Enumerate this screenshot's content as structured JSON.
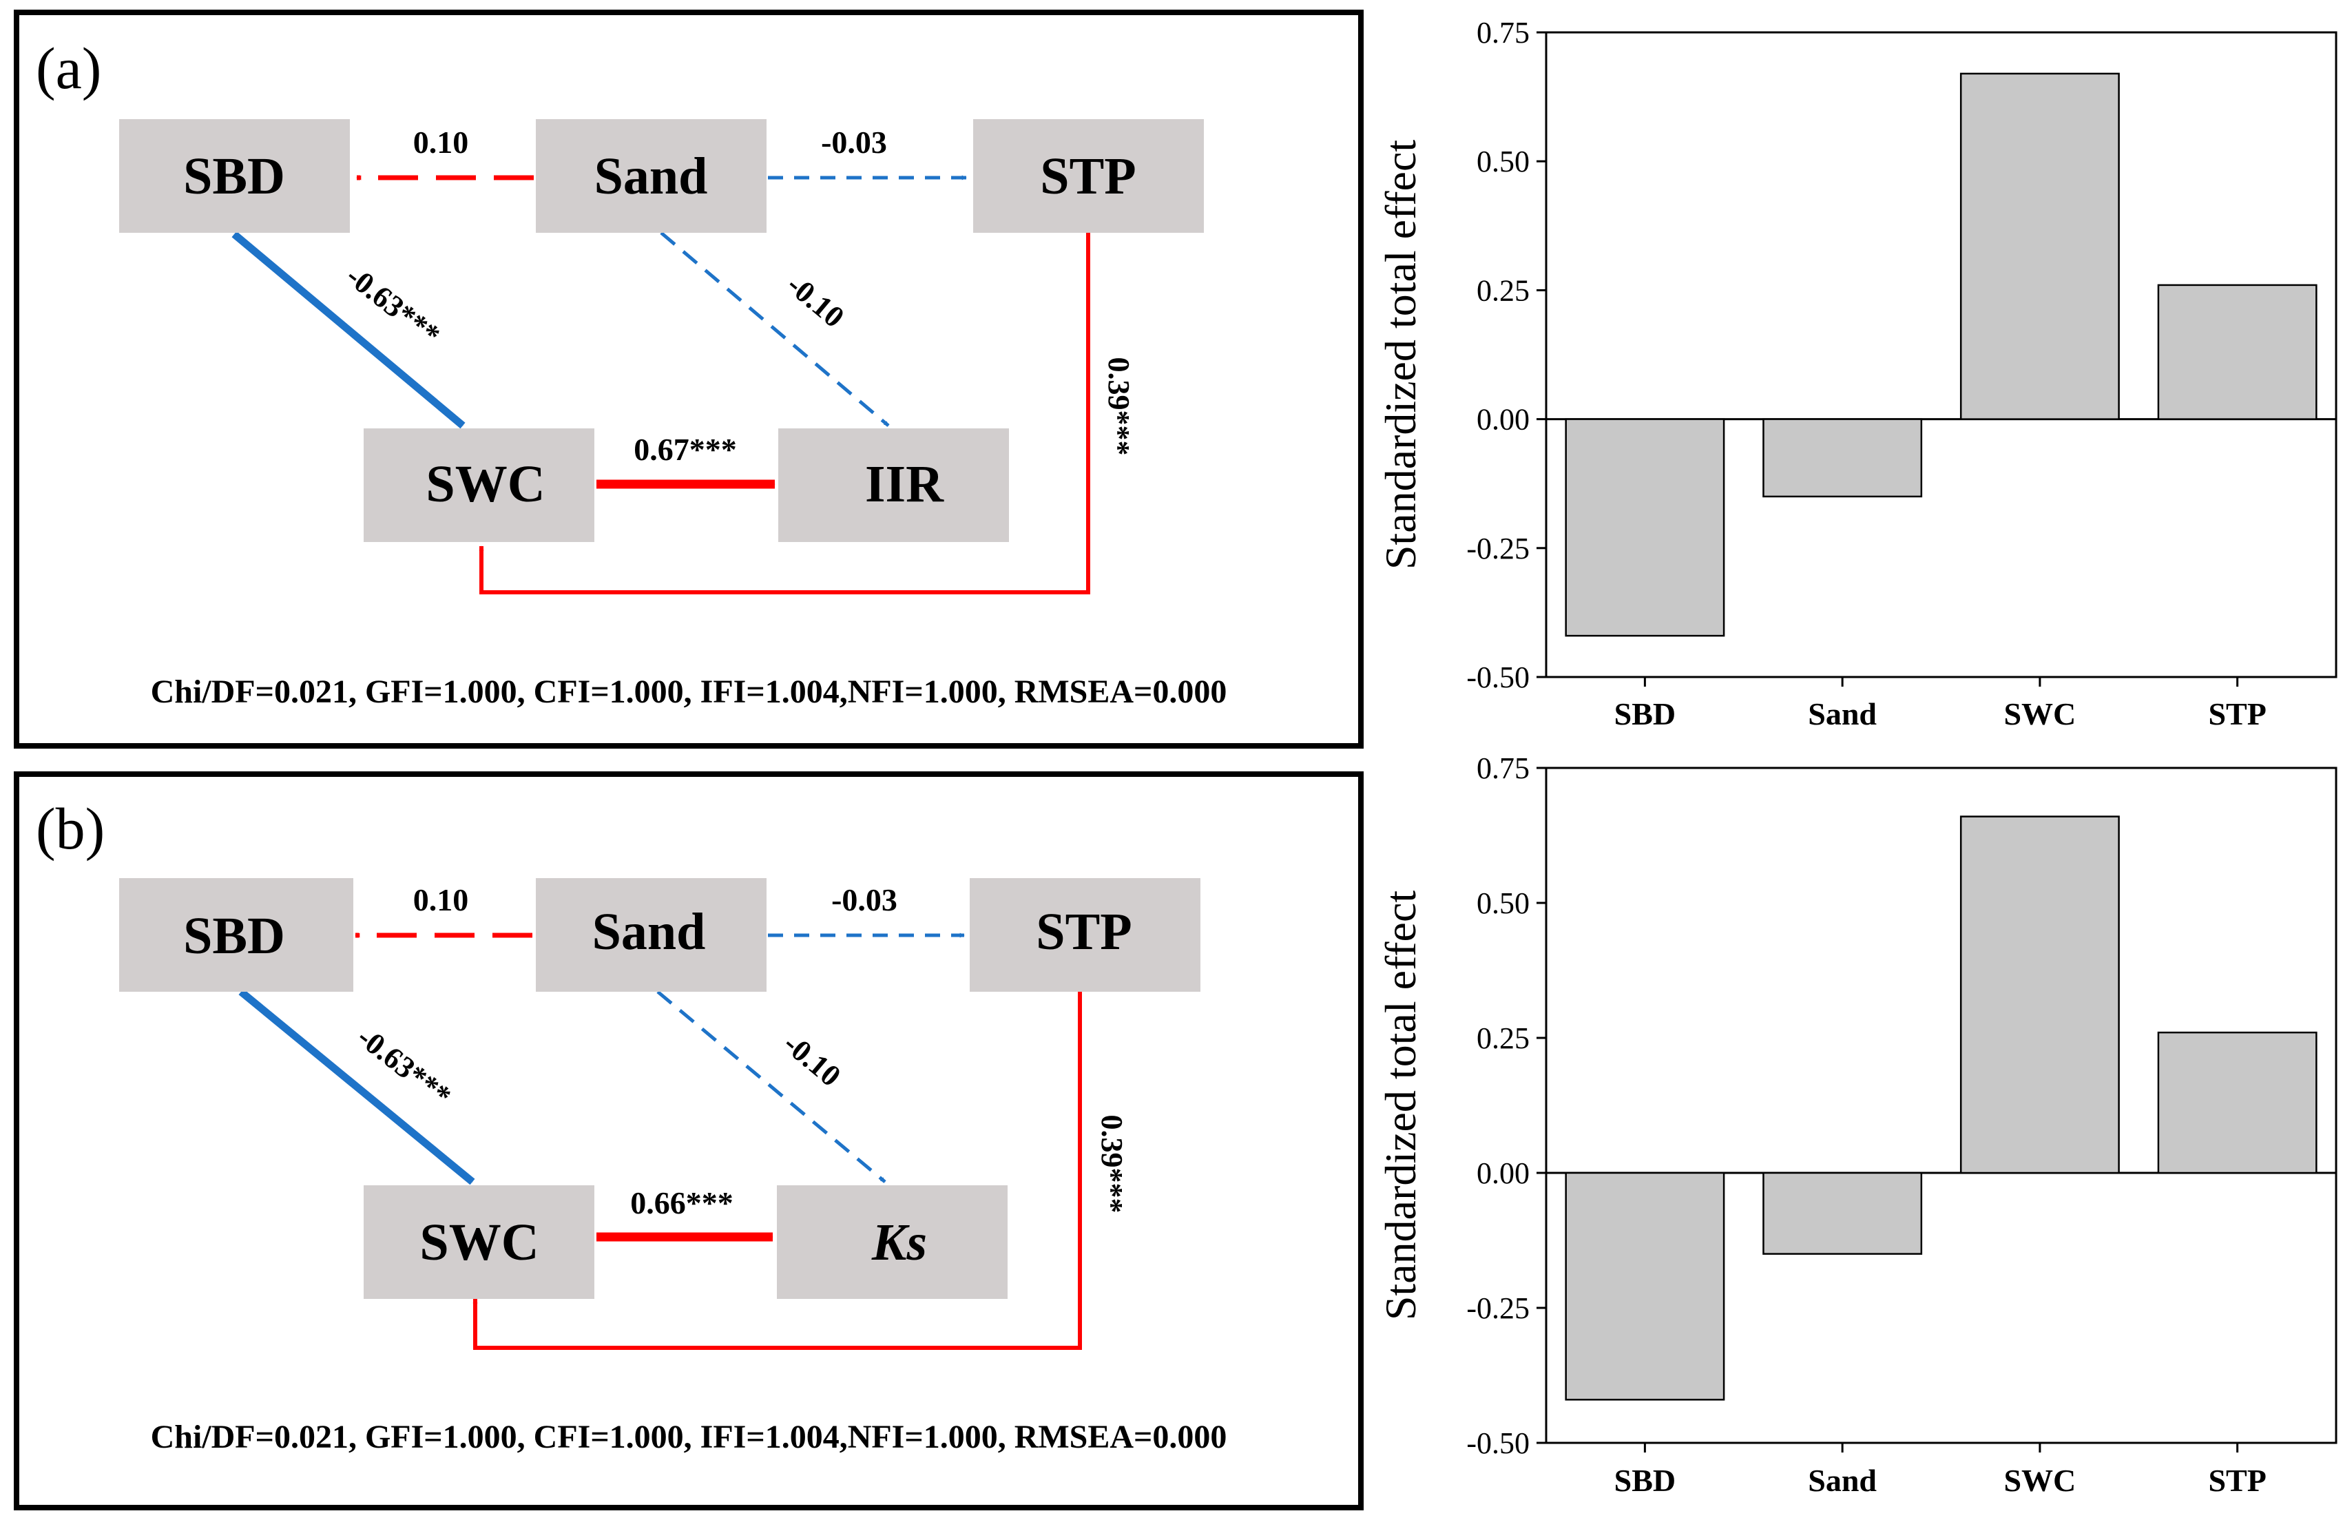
{
  "panels": [
    {
      "id": "a",
      "label": "(a)",
      "nodes": {
        "sbd": "SBD",
        "sand": "Sand",
        "stp": "STP",
        "swc": "SWC",
        "target": "IIR"
      },
      "target_italic": false,
      "paths": {
        "sand_sbd": "0.10",
        "sand_stp": "-0.03",
        "sbd_swc": "-0.63***",
        "sand_target": "-0.10",
        "swc_target": "0.67***",
        "stp_swc": "0.39***"
      },
      "fit_indices": "Chi/DF=0.021, GFI=1.000, CFI=1.000, IFI=1.004,NFI=1.000, RMSEA=0.000"
    },
    {
      "id": "b",
      "label": "(b)",
      "nodes": {
        "sbd": "SBD",
        "sand": "Sand",
        "stp": "STP",
        "swc": "SWC",
        "target": "Ks"
      },
      "target_italic": true,
      "paths": {
        "sand_sbd": "0.10",
        "sand_stp": "-0.03",
        "sbd_swc": "-0.63***",
        "sand_target": "-0.10",
        "swc_target": "0.66***",
        "stp_swc": "0.39***"
      },
      "fit_indices": "Chi/DF=0.021, GFI=1.000, CFI=1.000, IFI=1.004,NFI=1.000, RMSEA=0.000"
    }
  ],
  "colors": {
    "positive_path": "#ff0000",
    "negative_path": "#1e73c8",
    "node_fill": "#d2cece",
    "bar_fill": "#c8c8c8"
  },
  "chart_data": [
    {
      "type": "bar",
      "title": "",
      "xlabel": "",
      "ylabel": "Standardized total effect",
      "categories": [
        "SBD",
        "Sand",
        "SWC",
        "STP"
      ],
      "values": [
        -0.42,
        -0.15,
        0.67,
        0.26
      ],
      "ylim": [
        -0.5,
        0.75
      ],
      "yticks": [
        "0.75",
        "0.50",
        "0.25",
        "0.00",
        "-0.25",
        "-0.50"
      ],
      "ytick_values": [
        0.75,
        0.5,
        0.25,
        0.0,
        -0.25,
        -0.5
      ],
      "grid": false
    },
    {
      "type": "bar",
      "title": "",
      "xlabel": "",
      "ylabel": "Standardized total effect",
      "categories": [
        "SBD",
        "Sand",
        "SWC",
        "STP"
      ],
      "values": [
        -0.42,
        -0.15,
        0.66,
        0.26
      ],
      "ylim": [
        -0.5,
        0.75
      ],
      "yticks": [
        "0.75",
        "0.50",
        "0.25",
        "0.00",
        "-0.25",
        "-0.50"
      ],
      "ytick_values": [
        0.75,
        0.5,
        0.25,
        0.0,
        -0.25,
        -0.5
      ],
      "grid": false
    }
  ]
}
